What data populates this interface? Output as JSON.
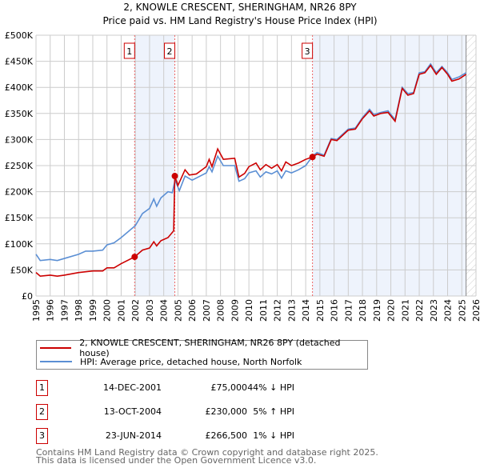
{
  "title": [
    "2, KNOWLE CRESCENT, SHERINGHAM, NR26 8PY",
    "Price paid vs. HM Land Registry's House Price Index (HPI)"
  ],
  "chart_data": {
    "type": "line",
    "title": "2, KNOWLE CRESCENT, SHERINGHAM, NR26 8PY — Price paid vs. HM Land Registry's House Price Index (HPI)",
    "xlim": [
      1995,
      2026
    ],
    "ylim": [
      0,
      500000
    ],
    "x_ticks": [
      "1995",
      "1996",
      "1997",
      "1998",
      "1999",
      "2000",
      "2001",
      "2002",
      "2003",
      "2004",
      "2005",
      "2006",
      "2007",
      "2008",
      "2009",
      "2010",
      "2011",
      "2012",
      "2013",
      "2014",
      "2015",
      "2016",
      "2017",
      "2018",
      "2019",
      "2020",
      "2021",
      "2022",
      "2023",
      "2024",
      "2025",
      "2026"
    ],
    "y_ticks": [
      {
        "v": 0,
        "l": "£0"
      },
      {
        "v": 50000,
        "l": "£50K"
      },
      {
        "v": 100000,
        "l": "£100K"
      },
      {
        "v": 150000,
        "l": "£150K"
      },
      {
        "v": 200000,
        "l": "£200K"
      },
      {
        "v": 250000,
        "l": "£250K"
      },
      {
        "v": 300000,
        "l": "£300K"
      },
      {
        "v": 350000,
        "l": "£350K"
      },
      {
        "v": 400000,
        "l": "£400K"
      },
      {
        "v": 450000,
        "l": "£450K"
      },
      {
        "v": 500000,
        "l": "£500K"
      }
    ],
    "grid": true,
    "series": [
      {
        "name": "2, KNOWLE CRESCENT, SHERINGHAM, NR26 8PY (detached house)",
        "color": "#cc0000",
        "points": [
          [
            1995,
            45
          ],
          [
            1995.3,
            38
          ],
          [
            1996,
            40
          ],
          [
            1996.5,
            38
          ],
          [
            1997,
            40
          ],
          [
            1998,
            45
          ],
          [
            1999,
            48
          ],
          [
            1999.7,
            48
          ],
          [
            2000,
            54
          ],
          [
            2000.5,
            54
          ],
          [
            2001,
            62
          ],
          [
            2001.95,
            75
          ],
          [
            2002.5,
            88
          ],
          [
            2003,
            92
          ],
          [
            2003.3,
            104
          ],
          [
            2003.5,
            96
          ],
          [
            2003.8,
            106
          ],
          [
            2004.3,
            112
          ],
          [
            2004.7,
            125
          ],
          [
            2004.78,
            230
          ],
          [
            2005,
            212
          ],
          [
            2005.5,
            242
          ],
          [
            2005.8,
            232
          ],
          [
            2006.3,
            234
          ],
          [
            2007,
            248
          ],
          [
            2007.2,
            262
          ],
          [
            2007.4,
            248
          ],
          [
            2007.8,
            282
          ],
          [
            2008.2,
            262
          ],
          [
            2009,
            264
          ],
          [
            2009.3,
            228
          ],
          [
            2009.7,
            235
          ],
          [
            2010,
            248
          ],
          [
            2010.5,
            255
          ],
          [
            2010.8,
            242
          ],
          [
            2011.2,
            252
          ],
          [
            2011.6,
            245
          ],
          [
            2012,
            252
          ],
          [
            2012.3,
            240
          ],
          [
            2012.6,
            257
          ],
          [
            2013,
            250
          ],
          [
            2013.5,
            255
          ],
          [
            2014,
            262
          ],
          [
            2014.48,
            266.5
          ],
          [
            2014.8,
            272
          ],
          [
            2015.3,
            268
          ],
          [
            2015.8,
            300
          ],
          [
            2016.2,
            298
          ],
          [
            2017,
            318
          ],
          [
            2017.5,
            320
          ],
          [
            2018,
            340
          ],
          [
            2018.5,
            355
          ],
          [
            2018.8,
            345
          ],
          [
            2019.3,
            350
          ],
          [
            2019.8,
            352
          ],
          [
            2020.3,
            335
          ],
          [
            2020.8,
            398
          ],
          [
            2021.2,
            385
          ],
          [
            2021.6,
            388
          ],
          [
            2022,
            425
          ],
          [
            2022.4,
            428
          ],
          [
            2022.8,
            442
          ],
          [
            2023.2,
            425
          ],
          [
            2023.6,
            438
          ],
          [
            2024,
            425
          ],
          [
            2024.3,
            412
          ],
          [
            2024.8,
            416
          ],
          [
            2025.3,
            425
          ]
        ]
      },
      {
        "name": "HPI: Average price, detached house, North Norfolk",
        "color": "#5b8fd4",
        "points": [
          [
            1995,
            80
          ],
          [
            1995.3,
            68
          ],
          [
            1996,
            70
          ],
          [
            1996.5,
            68
          ],
          [
            1997,
            72
          ],
          [
            1998,
            80
          ],
          [
            1998.5,
            86
          ],
          [
            1999,
            86
          ],
          [
            1999.7,
            88
          ],
          [
            2000,
            98
          ],
          [
            2000.5,
            102
          ],
          [
            2001,
            112
          ],
          [
            2002,
            135
          ],
          [
            2002.5,
            158
          ],
          [
            2003,
            168
          ],
          [
            2003.3,
            186
          ],
          [
            2003.5,
            172
          ],
          [
            2003.8,
            188
          ],
          [
            2004.3,
            200
          ],
          [
            2004.6,
            198
          ],
          [
            2004.8,
            222
          ],
          [
            2005.1,
            202
          ],
          [
            2005.5,
            230
          ],
          [
            2006,
            222
          ],
          [
            2007,
            236
          ],
          [
            2007.2,
            248
          ],
          [
            2007.4,
            238
          ],
          [
            2007.8,
            268
          ],
          [
            2008.2,
            250
          ],
          [
            2009,
            250
          ],
          [
            2009.3,
            220
          ],
          [
            2009.7,
            225
          ],
          [
            2010,
            236
          ],
          [
            2010.5,
            240
          ],
          [
            2010.8,
            228
          ],
          [
            2011.2,
            238
          ],
          [
            2011.6,
            234
          ],
          [
            2012,
            240
          ],
          [
            2012.3,
            226
          ],
          [
            2012.6,
            240
          ],
          [
            2013,
            236
          ],
          [
            2013.5,
            242
          ],
          [
            2014,
            250
          ],
          [
            2014.48,
            268
          ],
          [
            2014.8,
            275
          ],
          [
            2015.3,
            270
          ],
          [
            2015.8,
            302
          ],
          [
            2016.2,
            300
          ],
          [
            2017,
            320
          ],
          [
            2017.5,
            322
          ],
          [
            2018,
            342
          ],
          [
            2018.5,
            358
          ],
          [
            2018.8,
            348
          ],
          [
            2019.3,
            352
          ],
          [
            2019.8,
            355
          ],
          [
            2020.3,
            338
          ],
          [
            2020.8,
            400
          ],
          [
            2021.2,
            388
          ],
          [
            2021.6,
            390
          ],
          [
            2022,
            428
          ],
          [
            2022.4,
            430
          ],
          [
            2022.8,
            445
          ],
          [
            2023.2,
            428
          ],
          [
            2023.6,
            440
          ],
          [
            2024,
            428
          ],
          [
            2024.3,
            415
          ],
          [
            2024.8,
            420
          ],
          [
            2025.3,
            428
          ]
        ]
      }
    ],
    "sales": [
      {
        "n": "1",
        "x": 2001.95,
        "price": 75
      },
      {
        "n": "2",
        "x": 2004.78,
        "price": 230
      },
      {
        "n": "3",
        "x": 2014.48,
        "price": 266.5
      }
    ],
    "shaded_ranges": [
      [
        2001.95,
        2004.78
      ],
      [
        2014.48,
        2025.3
      ]
    ],
    "forecast_hatch_from": 2025.3,
    "value_units": "£K"
  },
  "legend": [
    "2, KNOWLE CRESCENT, SHERINGHAM, NR26 8PY (detached house)",
    "HPI: Average price, detached house, North Norfolk"
  ],
  "sales_table": [
    {
      "n": "1",
      "date": "14-DEC-2001",
      "price": "£75,000",
      "hpi": "44% ↓ HPI"
    },
    {
      "n": "2",
      "date": "13-OCT-2004",
      "price": "£230,000",
      "hpi": "5% ↑ HPI"
    },
    {
      "n": "3",
      "date": "23-JUN-2014",
      "price": "£266,500",
      "hpi": "1% ↓ HPI"
    }
  ],
  "footer": [
    "Contains HM Land Registry data © Crown copyright and database right 2025.",
    "This data is licensed under the Open Government Licence v3.0."
  ]
}
